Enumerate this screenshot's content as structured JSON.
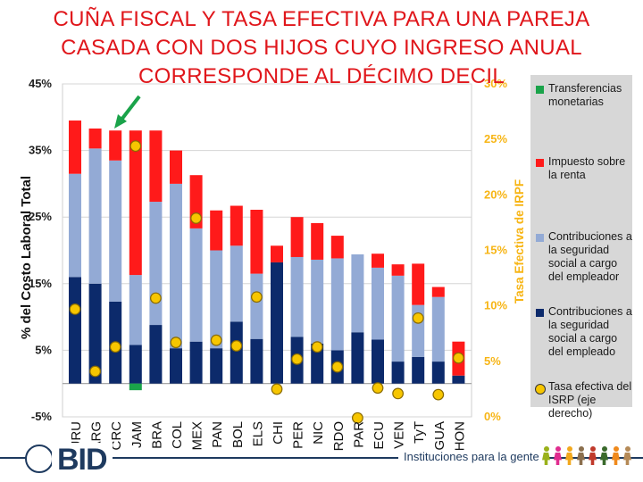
{
  "title": "CUÑA FISCAL Y TASA EFECTIVA PARA UNA PAREJA CASADA  CON DOS HIJOS CUYO INGRESO  ANUAL CORRESPONDE AL DÉCIMO DECIL",
  "chart_data": {
    "type": "bar",
    "stacked": true,
    "ylabel": "% del Costo Laboral Total",
    "y2label": "Tasa Efectiva de IRPF",
    "ylim": [
      -5,
      45
    ],
    "y2lim": [
      0,
      30
    ],
    "yticks": [
      "-5%",
      "5%",
      "15%",
      "25%",
      "35%",
      "45%"
    ],
    "y2ticks": [
      "0%",
      "5%",
      "10%",
      "15%",
      "20%",
      "25%",
      "30%"
    ],
    "categories": [
      "URU",
      "ARG",
      "CRC",
      "JAM",
      "BRA",
      "COL",
      "MEX",
      "PAN",
      "BOL",
      "ELS",
      "CHI",
      "PER",
      "NIC",
      "RDO",
      "PAR",
      "ECU",
      "VEN",
      "TyT",
      "GUA",
      "HON"
    ],
    "series": [
      {
        "name": "Contribuciones a la seguridad social a cargo del empleado",
        "color": "#0c2a6b",
        "values": [
          16,
          15,
          12.3,
          5.8,
          8.8,
          5.3,
          6.3,
          5.3,
          9.3,
          6.7,
          18.2,
          7,
          6,
          5,
          7.7,
          6.6,
          3.3,
          4,
          3.3,
          1.2
        ]
      },
      {
        "name": "Contribuciones a la seguridad social a cargo del empleador",
        "color": "#93aad5",
        "values": [
          15.5,
          20.3,
          21.2,
          10.5,
          18.5,
          24.7,
          17,
          14.7,
          11.4,
          9.8,
          0,
          12,
          12.6,
          13.8,
          11.7,
          10.8,
          12.9,
          7.8,
          9.7,
          0
        ]
      },
      {
        "name": "Impuesto sobre la renta",
        "color": "#ff1a1a",
        "values": [
          8,
          3,
          4.5,
          21.7,
          10.7,
          5,
          8,
          6,
          6,
          9.6,
          2.5,
          6,
          5.5,
          3.4,
          0,
          2.1,
          1.7,
          6.2,
          1.5,
          5.1
        ]
      },
      {
        "name": "Ajuste",
        "color": "#1aa34a",
        "values": [
          0,
          0,
          0,
          -1,
          0,
          0,
          0,
          0,
          0,
          0,
          0,
          0,
          0,
          0,
          0,
          0,
          0,
          0,
          0,
          0
        ]
      }
    ],
    "irpf_rate_series": {
      "name": "Tasa efectiva del ISRP (eje derecho)",
      "axis": "right",
      "color": "#f7c600",
      "values": [
        9.7,
        4.1,
        6.3,
        24.4,
        10.7,
        6.7,
        17.9,
        6.9,
        6.4,
        10.8,
        2.5,
        5.2,
        6.3,
        4.5,
        -0.1,
        2.6,
        2.1,
        8.9,
        2,
        5.3
      ]
    }
  },
  "legend": {
    "items": [
      {
        "label": "Transferencias monetarias",
        "color": "#1aa34a"
      },
      {
        "label": "Impuesto sobre la renta",
        "color": "#ff1a1a"
      },
      {
        "label": "Contribuciones a la seguridad social a cargo del empleador",
        "color": "#93aad5"
      },
      {
        "label": "Contribuciones a la seguridad social a cargo del empleado",
        "color": "#0c2a6b"
      },
      {
        "label": "Tasa efectiva del ISRP (eje derecho)",
        "color": "#f7c600"
      }
    ]
  },
  "footer": {
    "logo": "BID",
    "tagline": "Instituciones para la gente",
    "people_colors": [
      "#9ab11b",
      "#e02c8f",
      "#f2a81d",
      "#8b6f4e",
      "#c0392b",
      "#3a6a2c",
      "#f08a1c",
      "#b58a57"
    ]
  },
  "annotation": {
    "color": "#1aa34a"
  }
}
